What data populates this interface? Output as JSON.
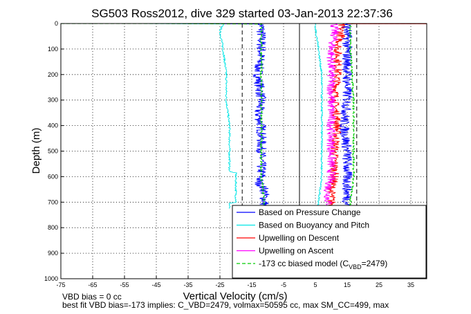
{
  "chart_data": {
    "type": "line",
    "title": "SG503 Ross2012, dive 329 started 03-Jan-2013 22:37:36",
    "xlabel": "Vertical Velocity (cm/s)",
    "ylabel": "Depth (m)",
    "xlim": [
      -75,
      40
    ],
    "ylim": [
      0,
      1000
    ],
    "y_reversed": true,
    "grid": true,
    "legend_position": "bottom-right",
    "xticks": [
      "-75",
      "-65",
      "-55",
      "-45",
      "-35",
      "-25",
      "-15",
      "-5",
      "5",
      "15",
      "25",
      "35"
    ],
    "yticks": [
      "0",
      "100",
      "200",
      "300",
      "400",
      "500",
      "600",
      "700",
      "800",
      "900",
      "1000"
    ],
    "reference_lines": [
      {
        "x": 0,
        "style": "solid",
        "color": "#000000"
      },
      {
        "x": -18,
        "style": "dashed",
        "color": "#000000"
      },
      {
        "x": 18,
        "style": "dashed",
        "color": "#000000"
      }
    ],
    "series": [
      {
        "name": "Based on Pressure Change",
        "color": "#0000ff",
        "noise": 1.6,
        "x": [
          -70,
          -40,
          -12,
          -12,
          -13,
          -12,
          -13,
          -12,
          -12,
          -12,
          -13,
          -11,
          -11,
          -11
        ],
        "y": [
          0,
          0,
          2,
          100,
          200,
          300,
          350,
          400,
          500,
          600,
          620,
          650,
          700,
          725
        ]
      },
      {
        "name": "Based on Buoyancy and Pitch",
        "color": "#00e5e5",
        "noise": 0.3,
        "x": [
          -75,
          -50,
          -24,
          -25,
          -24,
          -23,
          -23,
          -22,
          -22,
          -20,
          -20,
          -22,
          -22
        ],
        "y": [
          0,
          0,
          2,
          30,
          100,
          200,
          300,
          400,
          580,
          585,
          700,
          705,
          725
        ]
      },
      {
        "name": "Upwelling on Descent",
        "color": "#ff0000",
        "noise": 1.4,
        "x": [
          13,
          13,
          12,
          12,
          11,
          12,
          11,
          11,
          10,
          10,
          11
        ],
        "y": [
          0,
          50,
          100,
          200,
          300,
          400,
          500,
          600,
          650,
          700,
          725
        ]
      },
      {
        "name": "Upwelling on Ascent",
        "color": "#ff00ff",
        "noise": 1.4,
        "x": [
          11,
          11,
          10,
          10,
          10,
          10,
          10,
          10,
          9,
          9,
          10
        ],
        "y": [
          0,
          50,
          100,
          200,
          300,
          400,
          500,
          600,
          650,
          700,
          725
        ]
      },
      {
        "name": "-173 cc biased model (C_VBD=2479)",
        "color": "#00cc00",
        "style": "dashed",
        "noise": 0.3,
        "x": [
          -75,
          -45,
          -12,
          -12,
          -12,
          -12,
          -12,
          -11,
          -11
        ],
        "y": [
          0,
          0,
          2,
          100,
          300,
          500,
          600,
          700,
          725
        ]
      },
      {
        "name": "",
        "color": "#0000ff",
        "noise": 1.6,
        "x": [
          -5,
          15,
          15,
          15,
          15,
          15,
          14,
          15,
          15,
          15
        ],
        "y": [
          0,
          0,
          2,
          100,
          200,
          300,
          400,
          500,
          600,
          725
        ]
      },
      {
        "name": "",
        "color": "#00e5e5",
        "noise": 0.3,
        "x": [
          5,
          5,
          6,
          7,
          7,
          7,
          7,
          7,
          6,
          6
        ],
        "y": [
          0,
          20,
          100,
          200,
          300,
          400,
          500,
          600,
          700,
          725
        ]
      },
      {
        "name": "",
        "color": "#00cc00",
        "style": "dashed",
        "noise": 0.3,
        "x": [
          40,
          17,
          16,
          16,
          17,
          17,
          17,
          16,
          16
        ],
        "y": [
          0,
          0,
          2,
          100,
          300,
          500,
          600,
          700,
          725
        ]
      },
      {
        "name": "",
        "color": "#ff0000",
        "noise": 0,
        "x": [
          15,
          40
        ],
        "y": [
          1,
          1
        ]
      }
    ],
    "legend": [
      {
        "label": "Based on Pressure Change",
        "color": "#0000ff",
        "style": "solid"
      },
      {
        "label": "Based on Buoyancy and Pitch",
        "color": "#00e5e5",
        "style": "solid"
      },
      {
        "label": "Upwelling on Descent",
        "color": "#ff0000",
        "style": "solid"
      },
      {
        "label": "Upwelling on Ascent",
        "color": "#ff00ff",
        "style": "solid"
      },
      {
        "label": "-173 cc biased model (C",
        "sub": "VBD",
        "label_after": "=2479)",
        "color": "#00cc00",
        "style": "dashed"
      }
    ]
  },
  "footer": {
    "line1": "VBD bias = 0 cc",
    "line2": "best fit VBD bias=-173 implies: C_VBD=2479, volmax=50595 cc, max SM_CC=499, max"
  }
}
